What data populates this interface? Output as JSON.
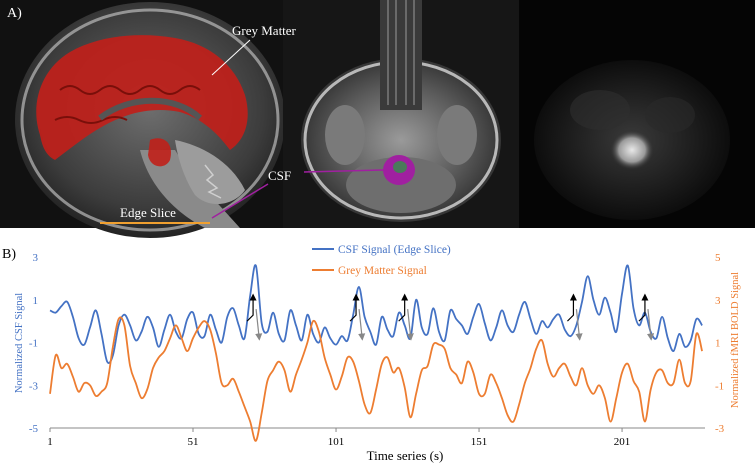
{
  "panel_a": {
    "letter": "A)",
    "labels": {
      "grey_matter": "Grey Matter",
      "csf": "CSF",
      "edge_slice": "Edge Slice"
    },
    "colors": {
      "grey_matter": "#c0201a",
      "csf": "#a020a0",
      "edge_slice": "#f0a030"
    }
  },
  "panel_b": {
    "letter": "B)"
  },
  "chart_data": {
    "type": "line",
    "xlabel": "Time series (s)",
    "ylabel_left": "Normalized CSF Signal",
    "ylabel_right": "Normalized fMRI BOLD Signal",
    "xlim": [
      1,
      230
    ],
    "ylim_left": [
      -5,
      3
    ],
    "ylim_right": [
      -3,
      5
    ],
    "x_ticks": [
      "1",
      "51",
      "101",
      "151",
      "201"
    ],
    "y_ticks_left": [
      "3",
      "1",
      "-1",
      "-3",
      "-5"
    ],
    "y_ticks_right": [
      "5",
      "3",
      "1",
      "-1",
      "-3"
    ],
    "legend_placement": "top-center",
    "series": [
      {
        "name": "CSF Signal (Edge Slice)",
        "axis": "left",
        "color": "#4472c4",
        "x": [
          1,
          3,
          5,
          7,
          9,
          11,
          13,
          15,
          17,
          19,
          21,
          23,
          25,
          27,
          29,
          31,
          33,
          35,
          37,
          39,
          41,
          43,
          45,
          47,
          49,
          51,
          53,
          55,
          57,
          59,
          61,
          63,
          65,
          67,
          69,
          71,
          73,
          75,
          77,
          79,
          81,
          83,
          85,
          87,
          89,
          91,
          93,
          95,
          97,
          99,
          101,
          103,
          105,
          107,
          109,
          111,
          113,
          115,
          117,
          119,
          121,
          123,
          125,
          127,
          129,
          131,
          133,
          135,
          137,
          139,
          141,
          143,
          145,
          147,
          149,
          151,
          153,
          155,
          157,
          159,
          161,
          163,
          165,
          167,
          169,
          171,
          173,
          175,
          177,
          179,
          181,
          183,
          185,
          187,
          189,
          191,
          193,
          195,
          197,
          199,
          201,
          203,
          205,
          207,
          209,
          211,
          213,
          215,
          217,
          219,
          221,
          223,
          225,
          227,
          229
        ],
        "values": [
          0.5,
          0.4,
          0.7,
          0.9,
          0.2,
          -0.8,
          -1.1,
          -0.3,
          0.5,
          -0.6,
          -1.9,
          -1.6,
          -0.2,
          0.3,
          -0.2,
          -0.9,
          -0.5,
          0.2,
          -0.3,
          -1.2,
          -0.4,
          0.3,
          -0.5,
          -0.8,
          0.1,
          0.4,
          -0.6,
          -0.7,
          0.3,
          -0.4,
          -1.0,
          0.2,
          0.6,
          -0.2,
          -0.8,
          1.2,
          2.6,
          -0.1,
          -0.5,
          0.4,
          -0.6,
          -0.9,
          0.5,
          -0.2,
          -0.9,
          0.3,
          -0.6,
          -1.0,
          -0.3,
          -0.8,
          -1.1,
          -0.7,
          -0.9,
          0.3,
          1.6,
          0.2,
          -0.5,
          -1.1,
          0.2,
          -0.4,
          -0.7,
          0.4,
          -0.2,
          -0.8,
          1.0,
          -0.3,
          -0.6,
          0.6,
          -0.5,
          -0.9,
          0.5,
          0.1,
          -0.2,
          -0.6,
          0.2,
          0.8,
          -0.1,
          -0.9,
          -0.3,
          0.5,
          -0.2,
          -0.5,
          0.3,
          0.9,
          0.1,
          -0.6,
          0.0,
          -0.3,
          0.1,
          0.3,
          -0.4,
          -0.7,
          -0.2,
          0.9,
          2.1,
          1.0,
          0.3,
          1.1,
          0.4,
          -0.5,
          1.3,
          2.6,
          0.6,
          -0.2,
          0.4,
          -0.5,
          -0.8,
          0.2,
          -0.8,
          -1.4,
          -0.6,
          -1.2,
          -0.9,
          0.1,
          -0.2
        ]
      },
      {
        "name": "Grey Matter Signal",
        "axis": "right",
        "color": "#ed7d31",
        "x": [
          1,
          3,
          5,
          7,
          9,
          11,
          13,
          15,
          17,
          19,
          21,
          23,
          25,
          27,
          29,
          31,
          33,
          35,
          37,
          39,
          41,
          43,
          45,
          47,
          49,
          51,
          53,
          55,
          57,
          59,
          61,
          63,
          65,
          67,
          69,
          71,
          73,
          75,
          77,
          79,
          81,
          83,
          85,
          87,
          89,
          91,
          93,
          95,
          97,
          99,
          101,
          103,
          105,
          107,
          109,
          111,
          113,
          115,
          117,
          119,
          121,
          123,
          125,
          127,
          129,
          131,
          133,
          135,
          137,
          139,
          141,
          143,
          145,
          147,
          149,
          151,
          153,
          155,
          157,
          159,
          161,
          163,
          165,
          167,
          169,
          171,
          173,
          175,
          177,
          179,
          181,
          183,
          185,
          187,
          189,
          191,
          193,
          195,
          197,
          199,
          201,
          203,
          205,
          207,
          209,
          211,
          213,
          215,
          217,
          219,
          221,
          223,
          225,
          227,
          229
        ],
        "values": [
          -1.4,
          0.4,
          -0.2,
          0.0,
          -0.6,
          -1.3,
          -0.9,
          -1.0,
          -1.5,
          -1.3,
          -0.9,
          0.8,
          2.1,
          1.8,
          -0.1,
          -0.9,
          -1.6,
          -1.2,
          -0.2,
          0.3,
          0.6,
          1.2,
          1.8,
          1.2,
          0.6,
          1.2,
          1.7,
          2.0,
          1.6,
          0.5,
          -0.9,
          -1.0,
          -0.7,
          -1.3,
          -2.0,
          -2.7,
          -3.6,
          -2.3,
          -0.8,
          -0.3,
          0.1,
          -0.3,
          -1.3,
          -0.5,
          0.2,
          1.0,
          2.0,
          1.5,
          0.3,
          -0.5,
          -1.2,
          -0.6,
          0.3,
          0.1,
          -0.8,
          -1.9,
          -2.3,
          -1.2,
          0.0,
          0.3,
          -0.4,
          -0.2,
          -1.1,
          -2.5,
          -1.4,
          -0.3,
          -0.1,
          0.9,
          0.9,
          0.7,
          -0.2,
          -0.5,
          -0.9,
          0.1,
          -0.4,
          -1.4,
          -1.4,
          -0.5,
          -0.9,
          -1.6,
          -2.4,
          -2.7,
          -1.9,
          -0.9,
          -0.2,
          0.7,
          1.1,
          0.0,
          -0.6,
          -0.2,
          0.0,
          -0.6,
          -1.0,
          -0.2,
          -1.0,
          -1.4,
          -1.0,
          -1.6,
          -2.7,
          -1.6,
          -0.4,
          0.0,
          -0.8,
          -1.3,
          -2.7,
          -1.2,
          -0.4,
          -0.3,
          -0.9,
          -0.9,
          0.2,
          -0.9,
          -0.8,
          1.4,
          0.6
        ]
      }
    ],
    "annotations": "arrow pairs marking CSF peaks aligned with grey matter signal drops"
  }
}
